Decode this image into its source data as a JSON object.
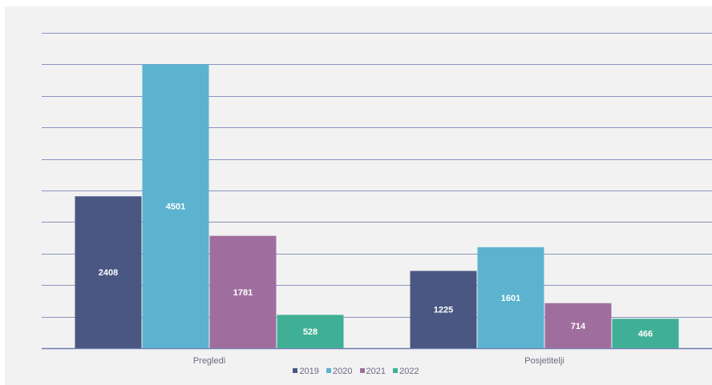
{
  "chart_data": {
    "type": "bar",
    "title": "",
    "xlabel": "",
    "ylabel": "",
    "categories": [
      "Pregledi",
      "Posjetitelji"
    ],
    "series": [
      {
        "name": "2019",
        "values": [
          2408,
          1225
        ],
        "color": "#4a5782"
      },
      {
        "name": "2020",
        "values": [
          4501,
          1601
        ],
        "color": "#5bb3cf"
      },
      {
        "name": "2021",
        "values": [
          1781,
          714
        ],
        "color": "#a06e9e"
      },
      {
        "name": "2022",
        "values": [
          528,
          466
        ],
        "color": "#3fb095"
      }
    ],
    "ylim": [
      0,
      5000
    ],
    "grid": true,
    "y_tick_step": 500,
    "y_tick_labels_visible": false,
    "legend_position": "bottom"
  }
}
